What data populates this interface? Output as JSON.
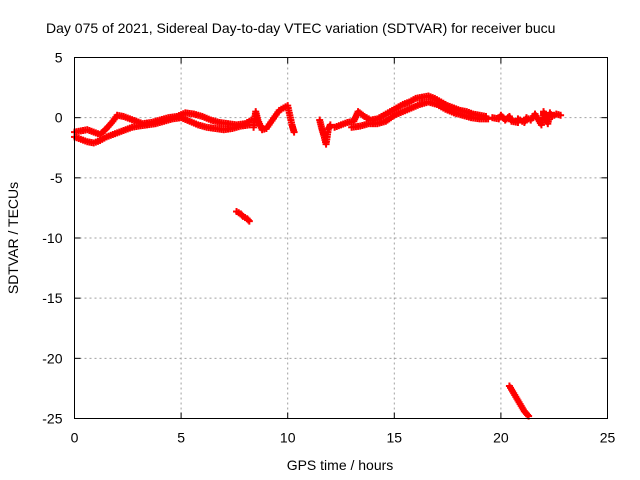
{
  "chart_data": {
    "type": "scatter",
    "title": "Day 075 of 2021, Sidereal Day-to-day VTEC variation (SDTVAR) for receiver bucu",
    "xlabel": "GPS time / hours",
    "ylabel": "SDTVAR / TECUs",
    "xlim": [
      0,
      25
    ],
    "ylim": [
      -25,
      5
    ],
    "xticks": [
      0,
      5,
      10,
      15,
      20,
      25
    ],
    "yticks": [
      -25,
      -20,
      -15,
      -10,
      -5,
      0,
      5
    ],
    "grid": true,
    "marker": "+",
    "series": [
      {
        "name": "SDTVAR",
        "color": "#ff0000",
        "segments": [
          {
            "name": "main-band-lower",
            "points": [
              [
                0.0,
                -1.6
              ],
              [
                0.3,
                -1.8
              ],
              [
                0.6,
                -2.0
              ],
              [
                0.9,
                -2.1
              ],
              [
                1.2,
                -1.9
              ],
              [
                1.5,
                -1.6
              ],
              [
                1.8,
                -1.4
              ],
              [
                2.1,
                -1.2
              ],
              [
                2.4,
                -1.0
              ],
              [
                2.7,
                -0.8
              ],
              [
                3.0,
                -0.7
              ],
              [
                3.4,
                -0.6
              ],
              [
                3.8,
                -0.5
              ],
              [
                4.2,
                -0.3
              ],
              [
                4.6,
                -0.1
              ],
              [
                5.0,
                0.0
              ],
              [
                5.4,
                -0.3
              ],
              [
                5.8,
                -0.6
              ],
              [
                6.2,
                -0.8
              ],
              [
                6.6,
                -0.9
              ],
              [
                7.0,
                -1.0
              ],
              [
                7.4,
                -0.9
              ],
              [
                7.8,
                -0.7
              ],
              [
                8.2,
                -0.6
              ]
            ]
          },
          {
            "name": "main-band-upper",
            "points": [
              [
                0.0,
                -1.2
              ],
              [
                0.3,
                -1.1
              ],
              [
                0.6,
                -1.0
              ],
              [
                0.9,
                -1.2
              ],
              [
                1.2,
                -1.4
              ],
              [
                1.5,
                -0.9
              ],
              [
                1.8,
                -0.3
              ],
              [
                2.0,
                0.2
              ],
              [
                2.3,
                0.1
              ],
              [
                2.6,
                -0.1
              ],
              [
                2.9,
                -0.3
              ],
              [
                3.2,
                -0.5
              ],
              [
                3.6,
                -0.4
              ],
              [
                4.0,
                -0.2
              ],
              [
                4.4,
                0.0
              ],
              [
                4.8,
                0.1
              ],
              [
                5.2,
                0.4
              ],
              [
                5.6,
                0.3
              ],
              [
                6.0,
                0.1
              ],
              [
                6.4,
                -0.2
              ],
              [
                6.8,
                -0.4
              ],
              [
                7.2,
                -0.5
              ],
              [
                7.6,
                -0.6
              ],
              [
                8.0,
                -0.5
              ],
              [
                8.3,
                -0.2
              ]
            ]
          },
          {
            "name": "scatter-8-10",
            "points": [
              [
                8.4,
                -0.8
              ],
              [
                8.5,
                0.5
              ],
              [
                8.6,
                -0.2
              ],
              [
                8.8,
                -1.0
              ],
              [
                9.0,
                -0.9
              ],
              [
                9.2,
                -0.4
              ],
              [
                9.4,
                0.1
              ],
              [
                9.6,
                0.6
              ],
              [
                9.8,
                0.8
              ],
              [
                10.0,
                1.0
              ],
              [
                10.1,
                0.2
              ],
              [
                10.2,
                -0.6
              ],
              [
                10.3,
                -1.2
              ]
            ]
          },
          {
            "name": "scatter-11-12",
            "points": [
              [
                11.5,
                -0.2
              ],
              [
                11.6,
                -0.9
              ],
              [
                11.7,
                -1.5
              ],
              [
                11.8,
                -2.2
              ],
              [
                11.9,
                -1.0
              ],
              [
                12.0,
                -0.6
              ]
            ]
          },
          {
            "name": "rising-band",
            "points": [
              [
                12.2,
                -0.8
              ],
              [
                12.5,
                -0.6
              ],
              [
                12.8,
                -0.4
              ],
              [
                13.1,
                -0.3
              ],
              [
                13.3,
                0.5
              ],
              [
                13.6,
                0.1
              ],
              [
                13.9,
                -0.2
              ],
              [
                14.2,
                -0.1
              ],
              [
                14.5,
                0.2
              ],
              [
                14.8,
                0.5
              ],
              [
                15.1,
                0.8
              ],
              [
                15.4,
                1.1
              ],
              [
                15.7,
                1.3
              ],
              [
                16.0,
                1.6
              ],
              [
                16.3,
                1.7
              ],
              [
                16.6,
                1.8
              ],
              [
                16.9,
                1.6
              ],
              [
                17.2,
                1.3
              ],
              [
                17.5,
                1.0
              ],
              [
                17.8,
                0.8
              ],
              [
                18.1,
                0.6
              ],
              [
                18.4,
                0.5
              ],
              [
                18.7,
                0.3
              ],
              [
                19.0,
                0.2
              ],
              [
                19.3,
                0.1
              ]
            ]
          },
          {
            "name": "rising-band-lower",
            "points": [
              [
                13.0,
                -0.8
              ],
              [
                13.4,
                -0.7
              ],
              [
                13.8,
                -0.5
              ],
              [
                14.2,
                -0.5
              ],
              [
                14.6,
                -0.3
              ],
              [
                15.0,
                0.2
              ],
              [
                15.4,
                0.5
              ],
              [
                15.8,
                0.8
              ],
              [
                16.2,
                1.1
              ],
              [
                16.6,
                1.3
              ],
              [
                17.0,
                1.1
              ],
              [
                17.4,
                0.7
              ],
              [
                17.8,
                0.4
              ],
              [
                18.2,
                0.2
              ],
              [
                18.6,
                0.0
              ],
              [
                19.0,
                -0.1
              ],
              [
                19.4,
                -0.1
              ]
            ]
          },
          {
            "name": "tail-band",
            "points": [
              [
                19.6,
                0.0
              ],
              [
                19.9,
                -0.1
              ],
              [
                20.2,
                -0.2
              ],
              [
                20.5,
                -0.3
              ],
              [
                20.8,
                -0.4
              ],
              [
                21.1,
                -0.4
              ],
              [
                21.4,
                -0.2
              ],
              [
                21.7,
                0.0
              ],
              [
                22.0,
                0.2
              ],
              [
                22.3,
                0.4
              ],
              [
                22.6,
                0.3
              ],
              [
                22.8,
                0.2
              ],
              [
                20.0,
                0.2
              ],
              [
                20.4,
                0.1
              ],
              [
                20.8,
                -0.1
              ],
              [
                21.2,
                0.0
              ],
              [
                21.6,
                0.3
              ],
              [
                22.0,
                0.5
              ],
              [
                22.4,
                0.1
              ],
              [
                22.2,
                -0.5
              ],
              [
                21.9,
                -0.6
              ]
            ]
          },
          {
            "name": "outlier-8h",
            "points": [
              [
                7.6,
                -7.8
              ],
              [
                7.7,
                -7.9
              ],
              [
                7.8,
                -8.0
              ],
              [
                7.9,
                -8.2
              ],
              [
                8.0,
                -8.3
              ],
              [
                8.1,
                -8.4
              ],
              [
                8.2,
                -8.6
              ]
            ]
          },
          {
            "name": "outlier-20h",
            "points": [
              [
                20.4,
                -22.3
              ],
              [
                20.5,
                -22.6
              ],
              [
                20.6,
                -22.9
              ],
              [
                20.7,
                -23.2
              ],
              [
                20.8,
                -23.5
              ],
              [
                20.9,
                -23.8
              ],
              [
                21.0,
                -24.1
              ],
              [
                21.1,
                -24.4
              ],
              [
                21.2,
                -24.6
              ],
              [
                21.3,
                -24.8
              ]
            ]
          }
        ]
      }
    ]
  }
}
